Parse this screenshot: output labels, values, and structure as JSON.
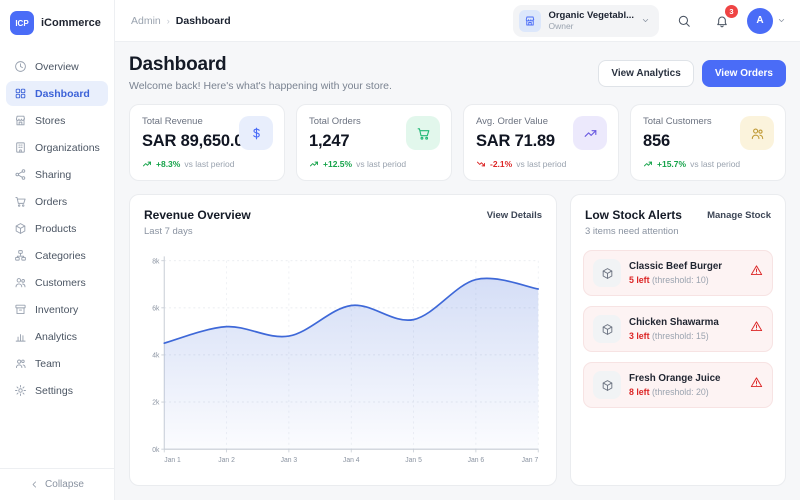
{
  "app": {
    "logo_text": "ICP",
    "name": "iCommerce"
  },
  "sidebar": {
    "items": [
      {
        "label": "Overview"
      },
      {
        "label": "Dashboard"
      },
      {
        "label": "Stores"
      },
      {
        "label": "Organizations"
      },
      {
        "label": "Sharing"
      },
      {
        "label": "Orders"
      },
      {
        "label": "Products"
      },
      {
        "label": "Categories"
      },
      {
        "label": "Customers"
      },
      {
        "label": "Inventory"
      },
      {
        "label": "Analytics"
      },
      {
        "label": "Team"
      },
      {
        "label": "Settings"
      }
    ],
    "active_item": "Dashboard",
    "collapse_label": "Collapse"
  },
  "header": {
    "breadcrumb": {
      "parent": "Admin",
      "current": "Dashboard"
    },
    "store_selector": {
      "name": "Organic Vegetabl...",
      "role": "Owner"
    },
    "notifications_count": "3",
    "avatar_initial": "A"
  },
  "page": {
    "title": "Dashboard",
    "subtitle": "Welcome back! Here's what's happening with your store.",
    "actions": {
      "view_analytics": "View Analytics",
      "view_orders": "View Orders"
    }
  },
  "stats": [
    {
      "label": "Total Revenue",
      "value": "SAR 89,650.00",
      "change": "+8.3%",
      "direction": "up",
      "suffix": "vs last period",
      "icon": "dollar-icon",
      "icon_bg": "#e8eefc",
      "icon_color": "#4a6cf7"
    },
    {
      "label": "Total Orders",
      "value": "1,247",
      "change": "+12.5%",
      "direction": "up",
      "suffix": "vs last period",
      "icon": "cart-icon",
      "icon_bg": "#e2f7ec",
      "icon_color": "#23b877"
    },
    {
      "label": "Avg. Order Value",
      "value": "SAR 71.89",
      "change": "-2.1%",
      "direction": "down",
      "suffix": "vs last period",
      "icon": "trending-up-icon",
      "icon_bg": "#ece9fc",
      "icon_color": "#6a5ae0"
    },
    {
      "label": "Total Customers",
      "value": "856",
      "change": "+15.7%",
      "direction": "up",
      "suffix": "vs last period",
      "icon": "customers-icon",
      "icon_bg": "#fbf3dc",
      "icon_color": "#c09a35"
    }
  ],
  "revenue_card": {
    "title": "Revenue Overview",
    "subtitle": "Last 7 days",
    "action": "View Details"
  },
  "chart_data": {
    "type": "area",
    "title": "Revenue Overview",
    "x": [
      "Jan 1",
      "Jan 2",
      "Jan 3",
      "Jan 4",
      "Jan 5",
      "Jan 6",
      "Jan 7"
    ],
    "series": [
      {
        "name": "Revenue",
        "values": [
          4500,
          5200,
          4800,
          6100,
          5500,
          7200,
          6800
        ]
      }
    ],
    "ylim": [
      0,
      8000
    ],
    "yticks": [
      0,
      2000,
      4000,
      6000,
      8000
    ],
    "ytick_labels": [
      "0k",
      "2k",
      "4k",
      "6k",
      "8k"
    ],
    "grid": true,
    "legend": "none",
    "line_color": "#3e68d8",
    "fill_color": "#3e68d8"
  },
  "alerts_card": {
    "title": "Low Stock Alerts",
    "subtitle": "3 items need attention",
    "action": "Manage Stock",
    "items": [
      {
        "name": "Classic Beef Burger",
        "left": "5 left",
        "threshold": "(threshold: 10)"
      },
      {
        "name": "Chicken Shawarma",
        "left": "3 left",
        "threshold": "(threshold: 15)"
      },
      {
        "name": "Fresh Orange Juice",
        "left": "8 left",
        "threshold": "(threshold: 20)"
      }
    ]
  },
  "colors": {
    "primary": "#4a6cf7",
    "positive": "#16a34a",
    "negative": "#dc2626",
    "alert_bg": "#fdf3f3"
  }
}
